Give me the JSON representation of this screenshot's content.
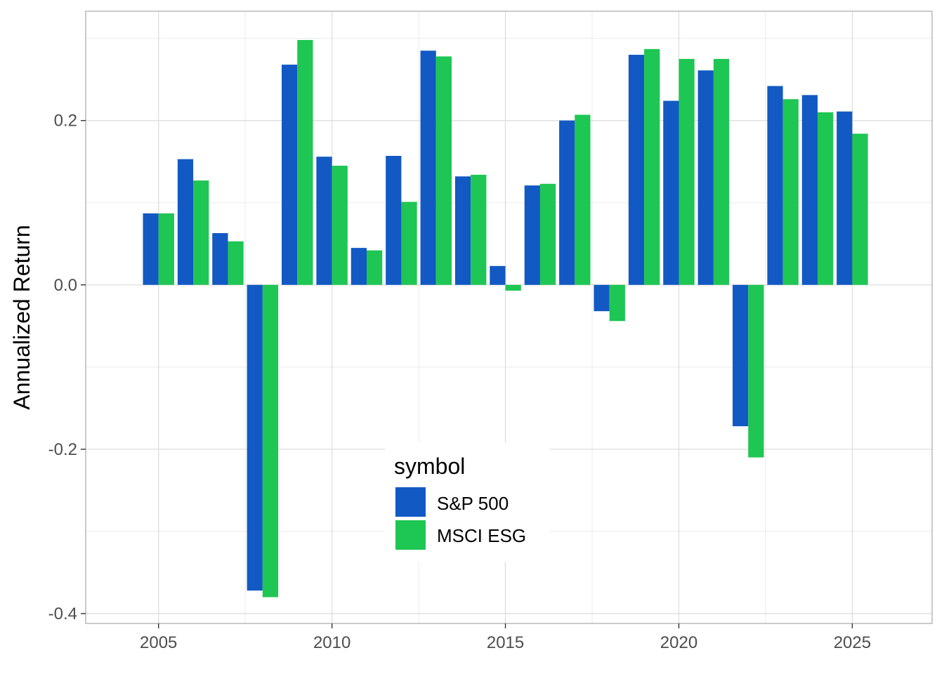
{
  "chart_data": {
    "type": "bar",
    "title": "",
    "xlabel": "",
    "ylabel": "Annualized Return",
    "x": [
      2005,
      2006,
      2007,
      2008,
      2009,
      2010,
      2011,
      2012,
      2013,
      2014,
      2015,
      2016,
      2017,
      2018,
      2019,
      2020,
      2021,
      2022,
      2023,
      2024,
      2025
    ],
    "series": [
      {
        "name": "S&P 500",
        "color": "#1259c3",
        "values": [
          0.087,
          0.153,
          0.063,
          -0.372,
          0.268,
          0.156,
          0.045,
          0.157,
          0.285,
          0.132,
          0.023,
          0.121,
          0.2,
          -0.032,
          0.28,
          0.224,
          0.261,
          -0.172,
          0.242,
          0.231,
          0.211
        ]
      },
      {
        "name": "MSCI ESG",
        "color": "#1ec653",
        "values": [
          0.087,
          0.127,
          0.053,
          -0.38,
          0.298,
          0.145,
          0.042,
          0.101,
          0.278,
          0.134,
          -0.007,
          0.123,
          0.207,
          -0.044,
          0.287,
          0.275,
          0.275,
          -0.21,
          0.226,
          0.21,
          0.184
        ]
      }
    ],
    "xlim": [
      2002.9,
      2027.3
    ],
    "ylim": [
      -0.412,
      0.333
    ],
    "x_ticks": [
      2005,
      2010,
      2015,
      2020,
      2025
    ],
    "x_tick_labels": [
      "2005",
      "2010",
      "2015",
      "2020",
      "2025"
    ],
    "y_ticks": [
      -0.4,
      -0.2,
      0.0,
      0.2
    ],
    "y_tick_labels": [
      "-0.4",
      "-0.2",
      "0.0",
      "0.2"
    ],
    "grid": true,
    "legend": {
      "title": "symbol",
      "placement": "inside-bottom-center"
    }
  }
}
